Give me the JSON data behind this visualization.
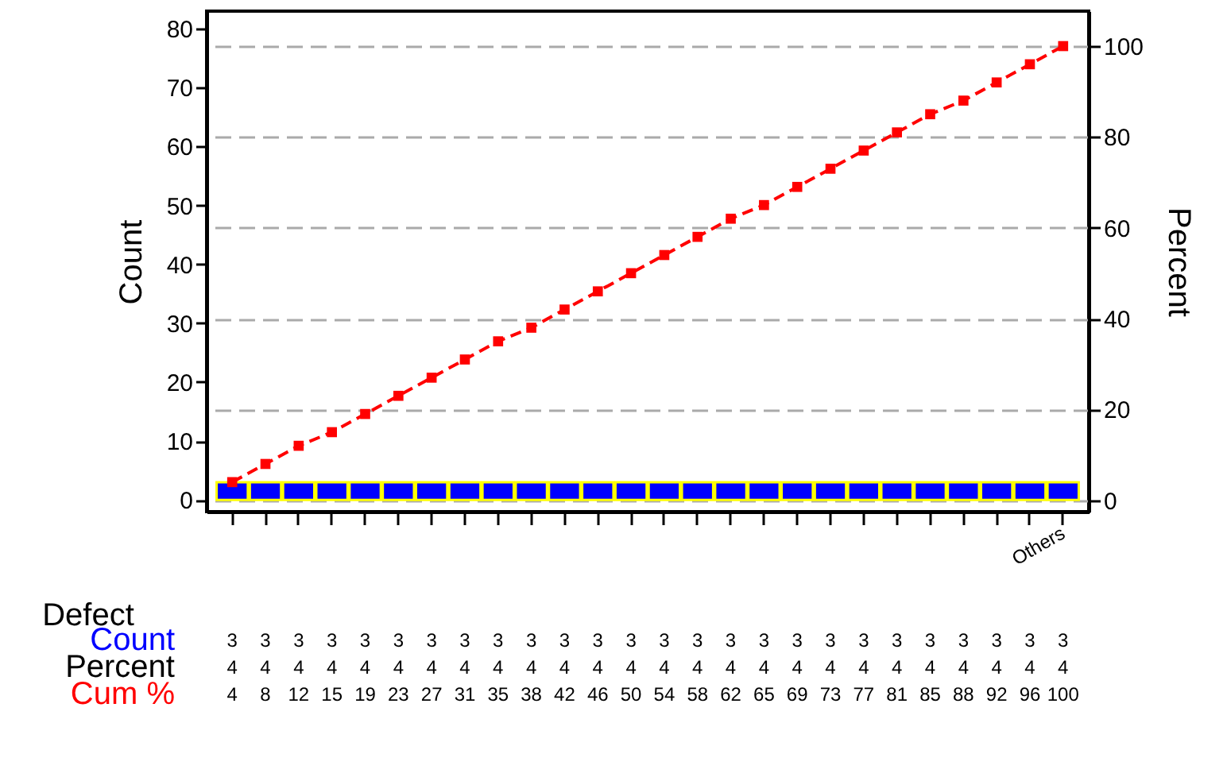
{
  "chart_data": {
    "type": "bar",
    "xlabel": "Defect",
    "ylabel": "Count",
    "y2label": "Percent",
    "categories": [
      null,
      null,
      null,
      null,
      null,
      null,
      null,
      null,
      null,
      null,
      null,
      null,
      null,
      null,
      null,
      null,
      null,
      null,
      null,
      null,
      null,
      null,
      null,
      null,
      null,
      "Others"
    ],
    "series": [
      {
        "name": "Count",
        "color": "#0000ff",
        "values": [
          3,
          3,
          3,
          3,
          3,
          3,
          3,
          3,
          3,
          3,
          3,
          3,
          3,
          3,
          3,
          3,
          3,
          3,
          3,
          3,
          3,
          3,
          3,
          3,
          3,
          3
        ]
      },
      {
        "name": "Cum %",
        "type": "line",
        "axis": "y2",
        "color": "#ff0000",
        "marker": "square",
        "line_style": "dashed",
        "values": [
          4,
          8,
          12,
          15,
          19,
          23,
          27,
          31,
          35,
          38,
          42,
          46,
          50,
          54,
          58,
          62,
          65,
          69,
          73,
          77,
          81,
          85,
          88,
          92,
          96,
          100
        ]
      }
    ],
    "ylim": [
      -2,
      83
    ],
    "yticks": [
      0,
      10,
      20,
      30,
      40,
      50,
      60,
      70,
      80
    ],
    "y2lim": [
      -2.5,
      107.7
    ],
    "y2ticks": [
      0,
      20,
      40,
      60,
      80,
      100
    ],
    "annotations": [
      "Percent",
      "4",
      "4",
      "4",
      "4",
      "4",
      "4",
      "4",
      "4",
      "4",
      "4",
      "4",
      "4",
      "4",
      "4",
      "4",
      "4",
      "4",
      "4",
      "4",
      "4",
      "4",
      "4",
      "4",
      "4",
      "4",
      "4"
    ],
    "grid": "y2",
    "data_labels": true
  }
}
